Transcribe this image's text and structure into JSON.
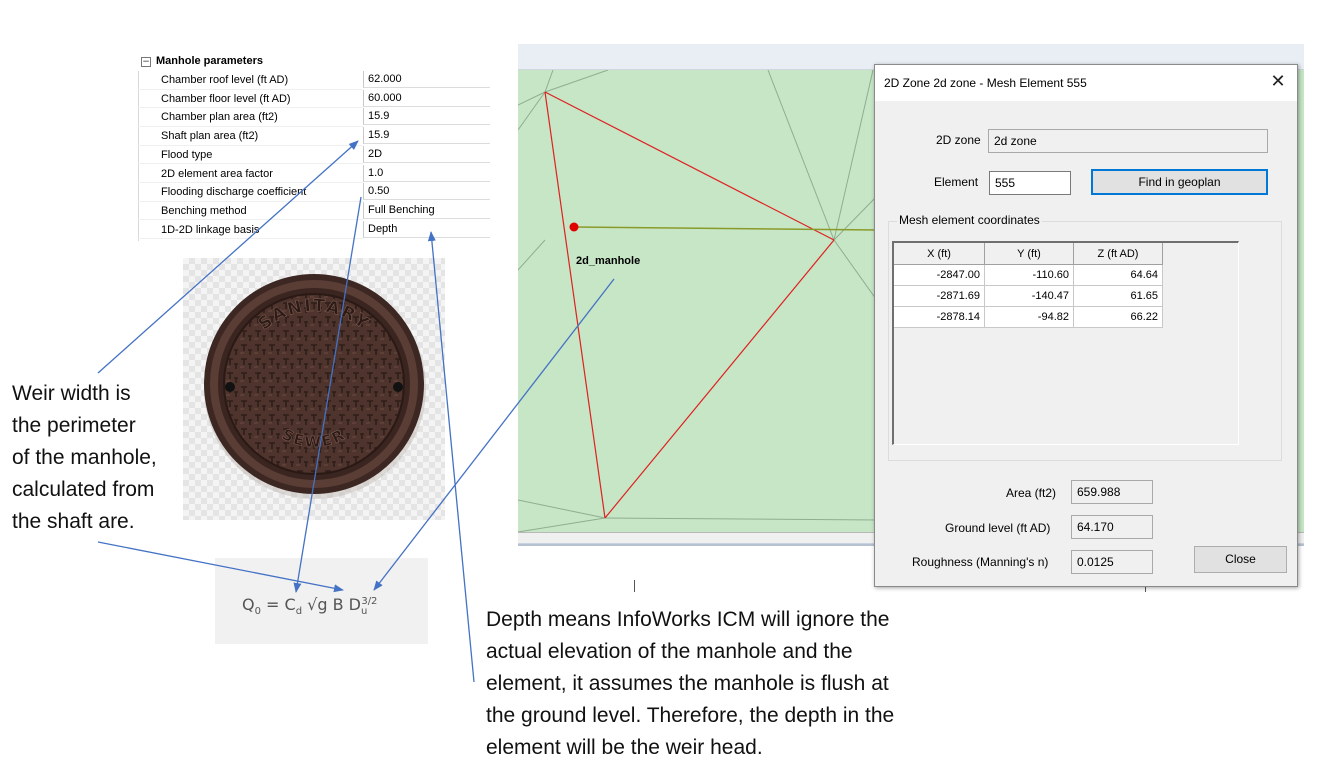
{
  "manhole_parameters": {
    "section_title": "Manhole parameters",
    "expander_symbol": "−",
    "rows": [
      {
        "label": "Chamber roof level (ft AD)",
        "value": "62.000"
      },
      {
        "label": "Chamber floor level (ft AD)",
        "value": "60.000"
      },
      {
        "label": "Chamber plan area (ft2)",
        "value": "15.9"
      },
      {
        "label": "Shaft plan area (ft2)",
        "value": "15.9"
      },
      {
        "label": "Flood type",
        "value": "2D"
      },
      {
        "label": "2D element area factor",
        "value": "1.0"
      },
      {
        "label": "Flooding discharge coefficient",
        "value": "0.50"
      },
      {
        "label": "Benching method",
        "value": "Full Benching"
      },
      {
        "label": "1D-2D linkage basis",
        "value": "Depth"
      }
    ]
  },
  "manhole_cover": {
    "top_text": "SANITARY",
    "bottom_text": "SEWER",
    "icon": "manhole-cover-image",
    "color": "#4a3029"
  },
  "formula": {
    "q": "Q",
    "q_sub": "0",
    "equals": " = C",
    "cd_sub": "d",
    "rest": " √g B D",
    "du_sub": "u",
    "du_sup": "3/2"
  },
  "notes": {
    "weir": [
      "Weir width is",
      "the perimeter",
      "of the manhole,",
      "calculated from",
      "the shaft are."
    ],
    "depth": [
      "Depth means InfoWorks ICM will ignore the",
      "actual elevation of the manhole and the",
      "element, it assumes the manhole is flush at",
      "the ground level. Therefore, the depth in the",
      "element will be the weir head."
    ]
  },
  "geoplan": {
    "manhole_label": "2d_manhole",
    "map_color": "#c6e6c6",
    "element_edge_color": "#e02020",
    "link_color": "#8a9a2a"
  },
  "dialog": {
    "title": "2D Zone 2d zone - Mesh Element 555",
    "close_symbol": "✕",
    "zone_label": "2D zone",
    "zone_value": "2d zone",
    "element_label": "Element",
    "element_value": "555",
    "find_button": "Find in geoplan",
    "coords_group_label": "Mesh element coordinates",
    "columns": [
      "X (ft)",
      "Y (ft)",
      "Z (ft AD)"
    ],
    "rows": [
      [
        "-2847.00",
        "-110.60",
        "64.64"
      ],
      [
        "-2871.69",
        "-140.47",
        "61.65"
      ],
      [
        "-2878.14",
        "-94.82",
        "66.22"
      ]
    ],
    "area_label": "Area (ft2)",
    "area_value": "659.988",
    "ground_label": "Ground level (ft AD)",
    "ground_value": "64.170",
    "roughness_label": "Roughness (Manning's n)",
    "roughness_value": "0.0125",
    "close_button": "Close"
  },
  "arrow_color": "#4472c4"
}
